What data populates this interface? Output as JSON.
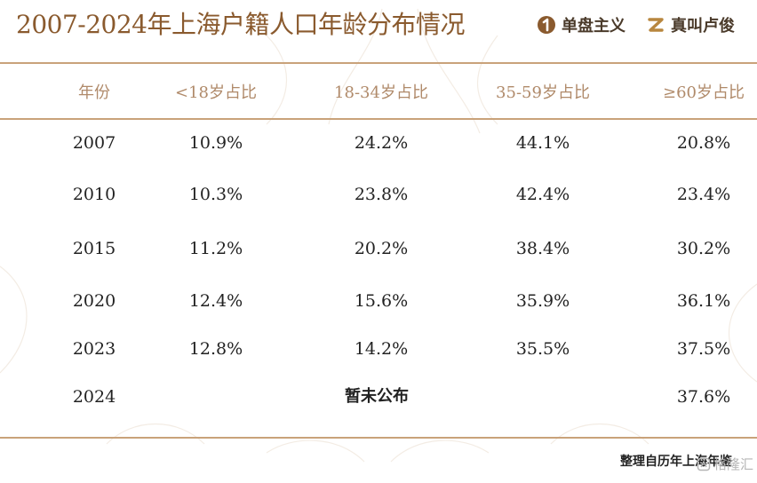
{
  "header": {
    "title": "2007-2024年上海户籍人口年龄分布情况",
    "brand1": "单盘主义",
    "brand2": "真叫卢俊"
  },
  "table": {
    "columns": [
      "年份",
      "<18岁占比",
      "18-34岁占比",
      "35-59岁占比",
      "≥60岁占比"
    ],
    "rows": [
      {
        "year": "2007",
        "c1": "10.9%",
        "c2": "24.2%",
        "c3": "44.1%",
        "c4": "20.8%"
      },
      {
        "year": "2010",
        "c1": "10.3%",
        "c2": "23.8%",
        "c3": "42.4%",
        "c4": "23.4%"
      },
      {
        "year": "2015",
        "c1": "11.2%",
        "c2": "20.2%",
        "c3": "38.4%",
        "c4": "30.2%"
      },
      {
        "year": "2020",
        "c1": "12.4%",
        "c2": "15.6%",
        "c3": "35.9%",
        "c4": "36.1%"
      },
      {
        "year": "2023",
        "c1": "12.8%",
        "c2": "14.2%",
        "c3": "35.5%",
        "c4": "37.5%"
      },
      {
        "year": "2024",
        "note": "暂未公布",
        "c4": "37.6%"
      }
    ]
  },
  "footer": {
    "source": "整理自历年上海年鉴",
    "watermark": "格隆汇"
  },
  "colors": {
    "title": "#8a5a2e",
    "rule": "#c9a27a",
    "header_text": "#b08a6a",
    "body_text": "#222222"
  }
}
